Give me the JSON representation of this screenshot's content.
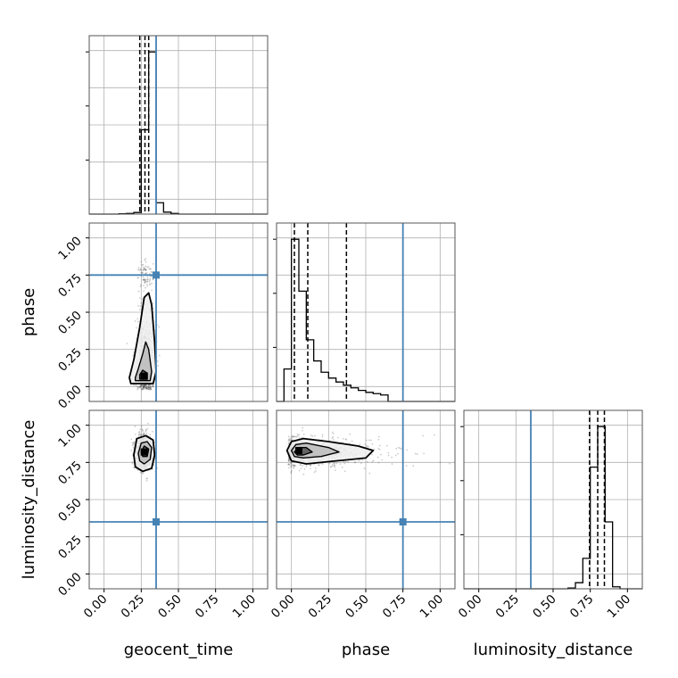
{
  "chart_data": {
    "type": "corner",
    "parameters": [
      "geocent_time",
      "phase",
      "luminosity_distance"
    ],
    "axis_labels": [
      "geocent_time",
      "phase",
      "luminosity_distance"
    ],
    "axis_range": [
      -0.1,
      1.1
    ],
    "ticks": [
      0.0,
      0.25,
      0.5,
      0.75,
      1.0
    ],
    "tick_labels": [
      "0.00",
      "0.25",
      "0.50",
      "0.75",
      "1.00"
    ],
    "grid": true,
    "truths": [
      0.35,
      0.75,
      0.35
    ],
    "quantiles": [
      [
        0.24,
        0.275,
        0.3
      ],
      [
        0.02,
        0.11,
        0.37
      ],
      [
        0.745,
        0.8,
        0.845
      ]
    ],
    "histograms": [
      {
        "edges": [
          -0.1,
          -0.05,
          0,
          0.05,
          0.1,
          0.15,
          0.2,
          0.25,
          0.3,
          0.35,
          0.4,
          0.45,
          0.5,
          0.55,
          0.6,
          0.65,
          0.7,
          0.75,
          0.8,
          0.85,
          0.9,
          0.95,
          1.0,
          1.05,
          1.1
        ],
        "counts": [
          0,
          0,
          0,
          0,
          1,
          2,
          5,
          260,
          500,
          35,
          6,
          2,
          0,
          0,
          0,
          0,
          0,
          0,
          0,
          0,
          0,
          0,
          0,
          0
        ]
      },
      {
        "edges": [
          -0.1,
          -0.05,
          0,
          0.05,
          0.1,
          0.15,
          0.2,
          0.25,
          0.3,
          0.35,
          0.4,
          0.45,
          0.5,
          0.55,
          0.6,
          0.65,
          0.7,
          0.75,
          0.8,
          0.85,
          0.9,
          0.95,
          1.0,
          1.05,
          1.1
        ],
        "counts": [
          0,
          100,
          500,
          340,
          190,
          125,
          90,
          72,
          60,
          50,
          42,
          34,
          28,
          24,
          20,
          0,
          0,
          0,
          0,
          0,
          0,
          0,
          0,
          0
        ]
      },
      {
        "edges": [
          -0.1,
          -0.05,
          0,
          0.05,
          0.1,
          0.15,
          0.2,
          0.25,
          0.3,
          0.35,
          0.4,
          0.45,
          0.5,
          0.55,
          0.6,
          0.65,
          0.7,
          0.75,
          0.8,
          0.85,
          0.9,
          0.95,
          1.0,
          1.05,
          1.1
        ],
        "counts": [
          0,
          0,
          0,
          0,
          0,
          0,
          0,
          0,
          0,
          0,
          0,
          0,
          0,
          0,
          2,
          15,
          75,
          300,
          400,
          165,
          5,
          0,
          0,
          0
        ]
      }
    ],
    "contours": [
      {
        "panel": "phase_vs_geocent_time",
        "levels": [
          [
            [
              0.18,
              0.02
            ],
            [
              0.33,
              0.02
            ],
            [
              0.35,
              0.1
            ],
            [
              0.34,
              0.3
            ],
            [
              0.32,
              0.55
            ],
            [
              0.3,
              0.63
            ],
            [
              0.27,
              0.6
            ],
            [
              0.24,
              0.4
            ],
            [
              0.2,
              0.18
            ],
            [
              0.17,
              0.06
            ]
          ],
          [
            [
              0.21,
              0.04
            ],
            [
              0.31,
              0.04
            ],
            [
              0.32,
              0.1
            ],
            [
              0.3,
              0.25
            ],
            [
              0.28,
              0.3
            ],
            [
              0.26,
              0.22
            ],
            [
              0.23,
              0.12
            ],
            [
              0.21,
              0.06
            ]
          ],
          [
            [
              0.24,
              0.05
            ],
            [
              0.29,
              0.05
            ],
            [
              0.29,
              0.09
            ],
            [
              0.26,
              0.11
            ],
            [
              0.24,
              0.08
            ]
          ]
        ]
      },
      {
        "panel": "luminosity_distance_vs_geocent_time",
        "levels": [
          [
            [
              0.2,
              0.8
            ],
            [
              0.22,
              0.91
            ],
            [
              0.28,
              0.93
            ],
            [
              0.33,
              0.9
            ],
            [
              0.34,
              0.8
            ],
            [
              0.32,
              0.71
            ],
            [
              0.26,
              0.69
            ],
            [
              0.21,
              0.72
            ]
          ],
          [
            [
              0.23,
              0.81
            ],
            [
              0.25,
              0.88
            ],
            [
              0.29,
              0.89
            ],
            [
              0.32,
              0.85
            ],
            [
              0.31,
              0.77
            ],
            [
              0.27,
              0.74
            ],
            [
              0.24,
              0.76
            ]
          ],
          [
            [
              0.25,
              0.82
            ],
            [
              0.27,
              0.86
            ],
            [
              0.3,
              0.84
            ],
            [
              0.29,
              0.79
            ],
            [
              0.26,
              0.79
            ]
          ]
        ]
      },
      {
        "panel": "luminosity_distance_vs_phase",
        "levels": [
          [
            [
              -0.03,
              0.83
            ],
            [
              0.0,
              0.89
            ],
            [
              0.08,
              0.91
            ],
            [
              0.25,
              0.89
            ],
            [
              0.45,
              0.86
            ],
            [
              0.55,
              0.83
            ],
            [
              0.5,
              0.78
            ],
            [
              0.3,
              0.76
            ],
            [
              0.1,
              0.74
            ],
            [
              0.0,
              0.76
            ]
          ],
          [
            [
              0.0,
              0.83
            ],
            [
              0.03,
              0.87
            ],
            [
              0.1,
              0.88
            ],
            [
              0.25,
              0.85
            ],
            [
              0.32,
              0.82
            ],
            [
              0.2,
              0.79
            ],
            [
              0.08,
              0.78
            ],
            [
              0.02,
              0.79
            ]
          ],
          [
            [
              0.02,
              0.82
            ],
            [
              0.05,
              0.85
            ],
            [
              0.1,
              0.85
            ],
            [
              0.14,
              0.82
            ],
            [
              0.08,
              0.8
            ],
            [
              0.04,
              0.8
            ]
          ]
        ]
      }
    ],
    "density_peaks": [
      {
        "panel": "phase_vs_geocent_time",
        "x": 0.27,
        "y": 0.07
      },
      {
        "panel": "luminosity_distance_vs_geocent_time",
        "x": 0.27,
        "y": 0.82
      },
      {
        "panel": "luminosity_distance_vs_phase",
        "x": 0.05,
        "y": 0.83
      }
    ],
    "colors": {
      "truth": "#4682b4",
      "hist": "#000000",
      "grid": "#b0b0b0",
      "frame": "#555555",
      "points": "#4d4d4d"
    }
  }
}
